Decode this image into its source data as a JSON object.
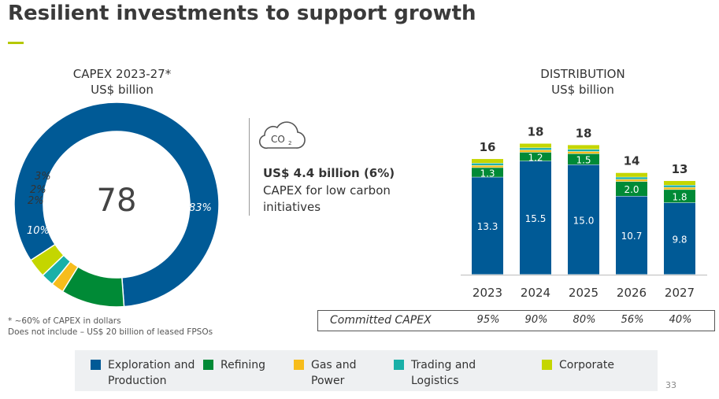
{
  "page": {
    "title": "Resilient investments to support growth",
    "page_number": "33",
    "accent_color": "#b5c800"
  },
  "capex": {
    "heading": "CAPEX 2023-27*",
    "unit": "US$ billion",
    "center_value": "78",
    "labels": [
      "83%",
      "10%",
      "2%",
      "2%",
      "3%"
    ]
  },
  "notes": {
    "line1": "* ~60% of CAPEX in dollars",
    "line2": "Does not include – US$ 20 billion of leased FPSOs"
  },
  "low_carbon": {
    "icon": "co2-cloud-icon",
    "value": "US$ 4.4 billion (6%)",
    "description": "CAPEX for low carbon initiatives"
  },
  "distribution": {
    "heading": "DISTRIBUTION",
    "unit": "US$ billion"
  },
  "committed": {
    "label": "Committed CAPEX",
    "values": [
      "95%",
      "90%",
      "80%",
      "56%",
      "40%"
    ]
  },
  "legend": [
    {
      "label": "Exploration and Production",
      "color": "#005a96"
    },
    {
      "label": "Refining",
      "color": "#008a36"
    },
    {
      "label": "Gas and Power",
      "color": "#f7bd1c"
    },
    {
      "label": "Trading and Logistics",
      "color": "#19b0a8"
    },
    {
      "label": "Corporate",
      "color": "#c4d600"
    }
  ],
  "chart_data": [
    {
      "type": "pie",
      "title": "CAPEX 2023-27*",
      "subtitle": "US$ billion",
      "center_label": "78",
      "categories": [
        "Exploration and Production",
        "Refining",
        "Gas and Power",
        "Trading and Logistics",
        "Corporate"
      ],
      "values": [
        83,
        10,
        2,
        2,
        3
      ],
      "value_labels": [
        "83%",
        "10%",
        "2%",
        "2%",
        "3%"
      ],
      "colors": [
        "#005a96",
        "#008a36",
        "#f7bd1c",
        "#19b0a8",
        "#c4d600"
      ]
    },
    {
      "type": "bar",
      "stacked": true,
      "title": "DISTRIBUTION",
      "subtitle": "US$ billion",
      "categories": [
        "2023",
        "2024",
        "2025",
        "2026",
        "2027"
      ],
      "totals": [
        16,
        18,
        18,
        14,
        13
      ],
      "ylim": [
        0,
        18
      ],
      "series": [
        {
          "name": "Exploration and Production",
          "color": "#005a96",
          "values": [
            13.3,
            15.5,
            15.0,
            10.7,
            9.8
          ]
        },
        {
          "name": "Refining",
          "color": "#008a36",
          "values": [
            1.3,
            1.2,
            1.5,
            2.0,
            1.8
          ]
        },
        {
          "name": "Gas and Power",
          "color": "#f7bd1c",
          "values": [
            0.3,
            0.3,
            0.3,
            0.3,
            0.3
          ]
        },
        {
          "name": "Trading and Logistics",
          "color": "#19b0a8",
          "values": [
            0.3,
            0.3,
            0.3,
            0.3,
            0.3
          ]
        },
        {
          "name": "Corporate",
          "color": "#c4d600",
          "values": [
            0.6,
            0.6,
            0.6,
            0.6,
            0.6
          ]
        }
      ],
      "labeled_series": [
        "Exploration and Production",
        "Refining"
      ]
    }
  ]
}
